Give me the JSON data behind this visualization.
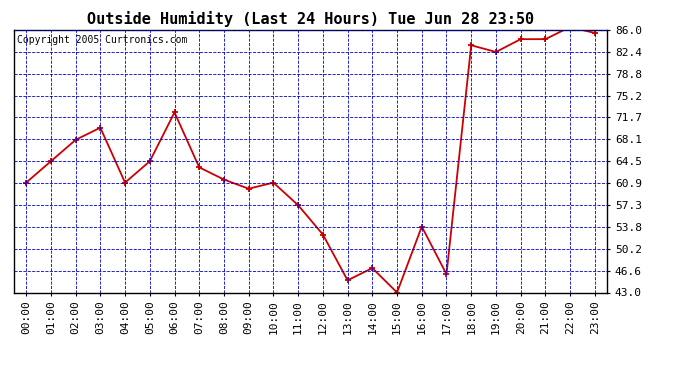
{
  "title": "Outside Humidity (Last 24 Hours) Tue Jun 28 23:50",
  "copyright": "Copyright 2005 Curtronics.com",
  "x_labels": [
    "00:00",
    "01:00",
    "02:00",
    "03:00",
    "04:00",
    "05:00",
    "06:00",
    "07:00",
    "08:00",
    "09:00",
    "10:00",
    "11:00",
    "12:00",
    "13:00",
    "14:00",
    "15:00",
    "16:00",
    "17:00",
    "18:00",
    "19:00",
    "20:00",
    "21:00",
    "22:00",
    "23:00"
  ],
  "y_values": [
    61.0,
    64.5,
    68.0,
    70.0,
    61.0,
    64.5,
    72.5,
    63.5,
    61.5,
    60.0,
    61.0,
    57.3,
    52.5,
    45.0,
    47.0,
    43.0,
    53.8,
    46.0,
    83.5,
    82.4,
    84.5,
    84.5,
    86.5,
    85.5
  ],
  "y_ticks": [
    43.0,
    46.6,
    50.2,
    53.8,
    57.3,
    60.9,
    64.5,
    68.1,
    71.7,
    75.2,
    78.8,
    82.4,
    86.0
  ],
  "y_min": 43.0,
  "y_max": 86.0,
  "line_color": "#cc0000",
  "marker_color": "#cc0000",
  "bg_color": "#ffffff",
  "plot_bg_color": "#ffffff",
  "grid_color": "#0000cc",
  "border_color": "#000000",
  "title_fontsize": 11,
  "copyright_fontsize": 7,
  "tick_fontsize": 8
}
